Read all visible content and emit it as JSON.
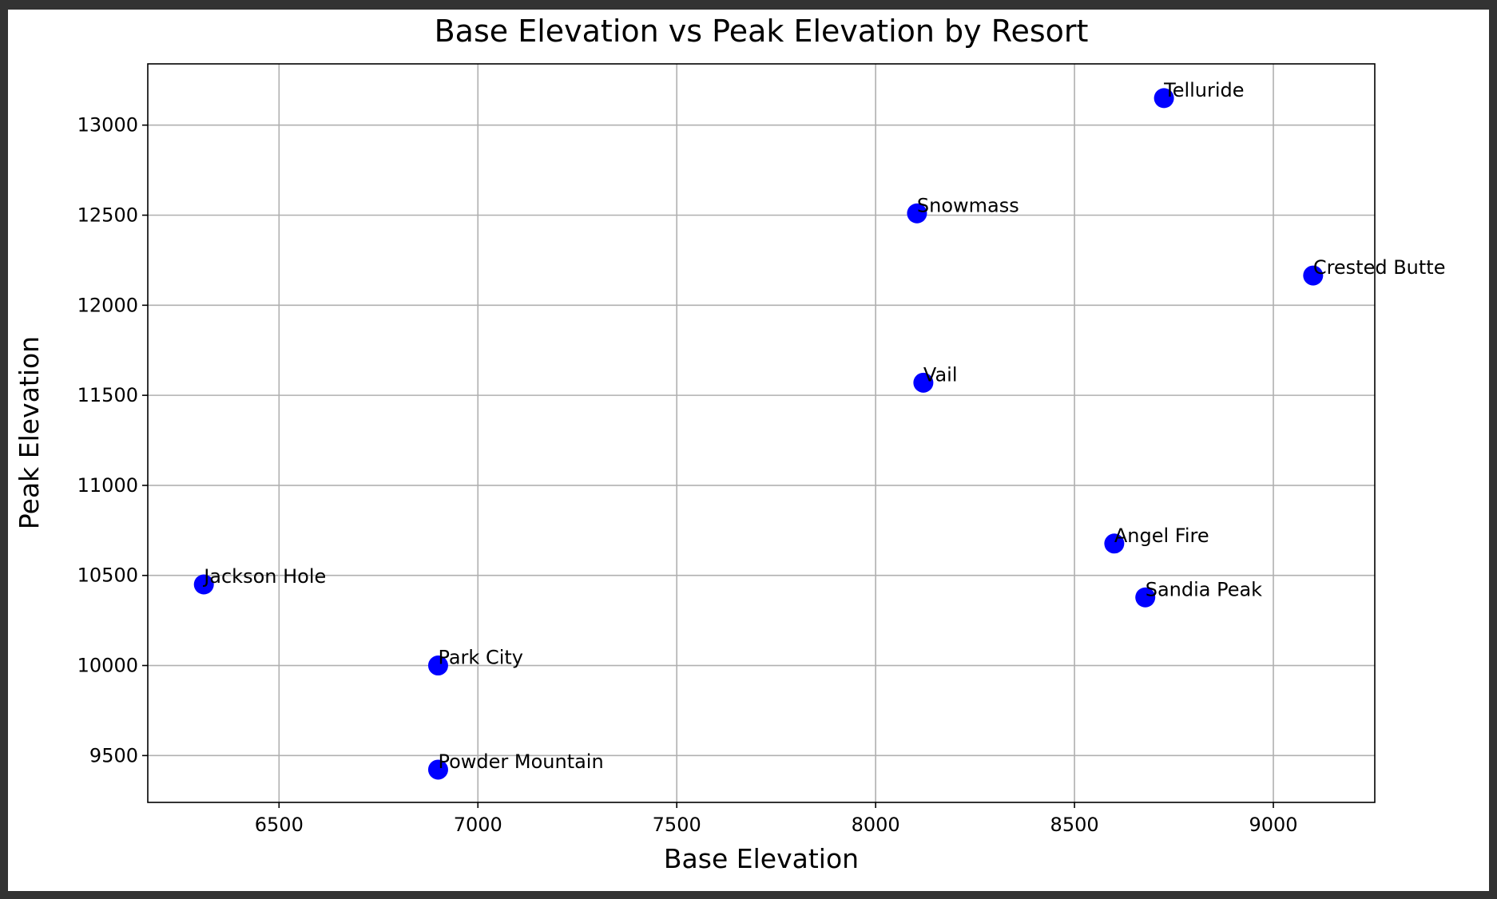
{
  "chart_data": {
    "type": "scatter",
    "title": "Base Elevation vs Peak Elevation by Resort",
    "xlabel": "Base Elevation",
    "ylabel": "Peak Elevation",
    "xlim": [
      6170,
      9255
    ],
    "ylim": [
      9240,
      13340
    ],
    "xticks": [
      6500,
      7000,
      7500,
      8000,
      8500,
      9000
    ],
    "yticks": [
      9500,
      10000,
      10500,
      11000,
      11500,
      12000,
      12500,
      13000
    ],
    "grid": true,
    "marker_color": "#0000ff",
    "points": [
      {
        "label": "Telluride",
        "x": 8725,
        "y": 13150
      },
      {
        "label": "Snowmass",
        "x": 8104,
        "y": 12510
      },
      {
        "label": "Crested Butte",
        "x": 9100,
        "y": 12165
      },
      {
        "label": "Vail",
        "x": 8120,
        "y": 11570
      },
      {
        "label": "Angel Fire",
        "x": 8600,
        "y": 10677
      },
      {
        "label": "Jackson Hole",
        "x": 6311,
        "y": 10450
      },
      {
        "label": "Sandia Peak",
        "x": 8678,
        "y": 10378
      },
      {
        "label": "Park City",
        "x": 6900,
        "y": 10000
      },
      {
        "label": "Powder Mountain",
        "x": 6900,
        "y": 9422
      }
    ]
  }
}
